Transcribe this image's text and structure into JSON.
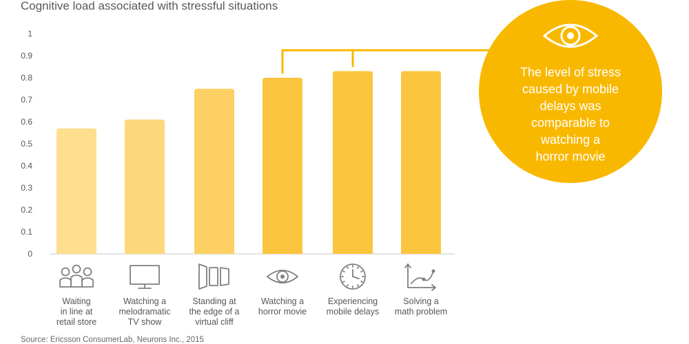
{
  "chart_data": {
    "type": "bar",
    "title": "Cognitive load associated with stressful situations",
    "categories": [
      [
        "Waiting",
        "in line at",
        "retail store"
      ],
      [
        "Watching a",
        "melodramatic",
        "TV show"
      ],
      [
        "Standing at",
        "the edge of a",
        "virtual cliff"
      ],
      [
        "Watching a",
        "horror movie"
      ],
      [
        "Experiencing",
        "mobile delays"
      ],
      [
        "Solving a",
        "math problem"
      ]
    ],
    "values": [
      0.57,
      0.61,
      0.75,
      0.8,
      0.83,
      0.83
    ],
    "ylim": [
      0,
      1
    ],
    "yticks": [
      "0",
      "0.1",
      "0.2",
      "0.3",
      "0.4",
      "0.5",
      "0.6",
      "0.7",
      "0.8",
      "0.9",
      "1"
    ],
    "grid": false,
    "bar_colors": [
      "#fddf8f",
      "#fdd87a",
      "#fdd063",
      "#fcc53f",
      "#fcc53f",
      "#fcc53f"
    ],
    "icons": [
      "people-icon",
      "tv-icon",
      "cliff-panels-icon",
      "eye-icon",
      "clock-icon",
      "graph-icon"
    ]
  },
  "callout": {
    "lines": [
      "The level of stress",
      "caused by mobile",
      "delays was",
      "comparable to",
      "watching a",
      "horror movie"
    ],
    "icon": "eye-icon",
    "color": "#f9b800"
  },
  "source": "Source: Ericsson ConsumerLab, Neurons Inc., 2015"
}
